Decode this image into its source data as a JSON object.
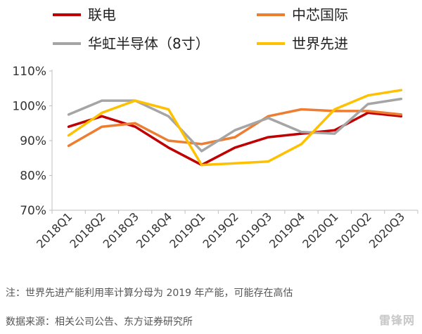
{
  "chart_data": {
    "type": "line",
    "categories": [
      "2018Q1",
      "2018Q2",
      "2018Q3",
      "2018Q4",
      "2019Q1",
      "2019Q2",
      "2019Q3",
      "2019Q4",
      "2020Q1",
      "2020Q2",
      "2020Q3"
    ],
    "ylim": [
      70,
      110
    ],
    "yticks": [
      "70%",
      "80%",
      "90%",
      "100%",
      "110%"
    ],
    "ytick_values": [
      70,
      80,
      90,
      100,
      110
    ],
    "grid": false,
    "legend_position": "top",
    "series": [
      {
        "name": "联电",
        "color": "#c00000",
        "values": [
          94,
          97,
          94,
          88,
          83,
          88,
          91,
          92,
          93,
          98,
          97
        ]
      },
      {
        "name": "中芯国际",
        "color": "#ed7d31",
        "values": [
          88.5,
          94,
          95,
          90,
          89,
          91,
          97,
          99,
          98.5,
          98.5,
          97.5
        ]
      },
      {
        "name": "华虹半导体（8寸）",
        "color": "#a5a5a5",
        "values": [
          97.5,
          101.5,
          101.5,
          97,
          87,
          93,
          96.5,
          92.5,
          92,
          100.5,
          102
        ]
      },
      {
        "name": "世界先进",
        "color": "#ffc000",
        "values": [
          91.5,
          98,
          101.5,
          99,
          83,
          83.5,
          84,
          89,
          99,
          103,
          104.5
        ]
      }
    ]
  },
  "notes": {
    "note": "注：世界先进产能利用率计算分母为 2019 年产能，可能存在高估",
    "source": "数据来源：相关公司公告、东方证券研究所"
  },
  "watermark": "雷锋网"
}
